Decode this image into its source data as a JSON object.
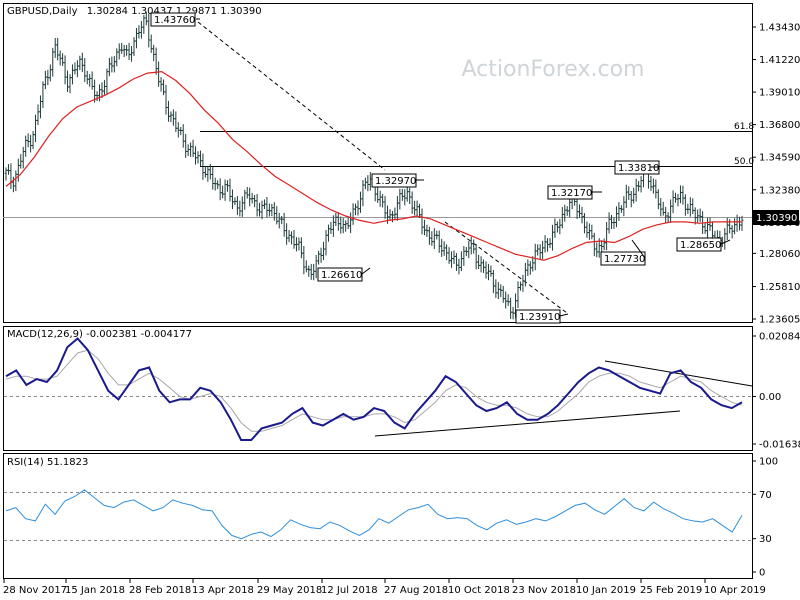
{
  "chart_data": [
    {
      "type": "candlestick",
      "title": "GBPUSD,Daily",
      "ohlc_label": "1.30284 1.30437 1.29871 1.30390",
      "watermark": "ActionForex.com",
      "y_ticks": [
        "1.43430",
        "1.41220",
        "1.39010",
        "1.36800",
        "1.34590",
        "1.32380",
        "1.30170",
        "1.28060",
        "1.25810",
        "1.23605"
      ],
      "current_price": "1.30390",
      "x_ticks": [
        "28 Nov 2017",
        "15 Jan 2018",
        "28 Feb 2018",
        "13 Apr 2018",
        "29 May 2018",
        "12 Jul 2018",
        "27 Aug 2018",
        "10 Oct 2018",
        "23 Nov 2018",
        "10 Jan 2019",
        "25 Feb 2019",
        "10 Apr 2019"
      ],
      "fib_levels": [
        {
          "label": "61.8",
          "price": 1.3645
        },
        {
          "label": "50.0",
          "price": 1.341
        }
      ],
      "price_labels": [
        "1.43760",
        "1.32970",
        "1.26610",
        "1.23910",
        "1.32170",
        "1.27730",
        "1.33810",
        "1.28650"
      ],
      "price_path": [
        1.335,
        1.329,
        1.338,
        1.352,
        1.358,
        1.37,
        1.392,
        1.405,
        1.42,
        1.412,
        1.398,
        1.401,
        1.412,
        1.405,
        1.392,
        1.388,
        1.395,
        1.405,
        1.415,
        1.422,
        1.412,
        1.425,
        1.434,
        1.437,
        1.42,
        1.4,
        1.385,
        1.375,
        1.366,
        1.358,
        1.352,
        1.347,
        1.342,
        1.336,
        1.329,
        1.324,
        1.326,
        1.318,
        1.312,
        1.316,
        1.32,
        1.315,
        1.309,
        1.312,
        1.31,
        1.301,
        1.295,
        1.291,
        1.285,
        1.275,
        1.266,
        1.272,
        1.285,
        1.296,
        1.301,
        1.303,
        1.297,
        1.307,
        1.317,
        1.327,
        1.33,
        1.322,
        1.311,
        1.304,
        1.312,
        1.318,
        1.322,
        1.313,
        1.304,
        1.296,
        1.291,
        1.288,
        1.284,
        1.277,
        1.272,
        1.279,
        1.285,
        1.281,
        1.273,
        1.268,
        1.262,
        1.255,
        1.249,
        1.241,
        1.252,
        1.263,
        1.274,
        1.279,
        1.283,
        1.289,
        1.294,
        1.301,
        1.312,
        1.317,
        1.311,
        1.302,
        1.291,
        1.284,
        1.286,
        1.298,
        1.306,
        1.311,
        1.318,
        1.322,
        1.326,
        1.338,
        1.33,
        1.318,
        1.305,
        1.311,
        1.317,
        1.32,
        1.313,
        1.307,
        1.305,
        1.299,
        1.294,
        1.29,
        1.292,
        1.297,
        1.301,
        1.304
      ],
      "ma_path": [
        1.326,
        1.334,
        1.346,
        1.36,
        1.372,
        1.38,
        1.384,
        1.388,
        1.393,
        1.399,
        1.403,
        1.404,
        1.398,
        1.389,
        1.378,
        1.369,
        1.358,
        1.35,
        1.341,
        1.333,
        1.327,
        1.321,
        1.315,
        1.31,
        1.306,
        1.303,
        1.301,
        1.303,
        1.304,
        1.306,
        1.304,
        1.3,
        1.296,
        1.292,
        1.288,
        1.284,
        1.28,
        1.278,
        1.276,
        1.279,
        1.284,
        1.288,
        1.289,
        1.288,
        1.292,
        1.297,
        1.3,
        1.302,
        1.302,
        1.301,
        1.302,
        1.302,
        1.302
      ],
      "panel_bottom_dashed_y": 1.2685
    },
    {
      "type": "line",
      "title": "MACD(12,26,9) -0.002381 -0.004177",
      "y_ticks": [
        "0.020848",
        "0.00",
        "-0.016389"
      ],
      "macd": [
        0.007,
        0.009,
        0.004,
        0.006,
        0.005,
        0.009,
        0.017,
        0.02,
        0.016,
        0.009,
        0.002,
        -0.001,
        0.004,
        0.009,
        0.01,
        0.002,
        -0.002,
        -0.001,
        -0.001,
        0.003,
        0.002,
        -0.002,
        -0.008,
        -0.015,
        -0.015,
        -0.011,
        -0.01,
        -0.009,
        -0.006,
        -0.004,
        -0.009,
        -0.01,
        -0.008,
        -0.006,
        -0.008,
        -0.007,
        -0.004,
        -0.005,
        -0.009,
        -0.011,
        -0.006,
        -0.002,
        0.002,
        0.007,
        0.005,
        0.001,
        -0.003,
        -0.005,
        -0.004,
        -0.002,
        -0.006,
        -0.008,
        -0.008,
        -0.006,
        -0.003,
        0.001,
        0.005,
        0.008,
        0.01,
        0.009,
        0.007,
        0.005,
        0.003,
        0.002,
        0.001,
        0.008,
        0.009,
        0.005,
        0.003,
        -0.001,
        -0.003,
        -0.004,
        -0.002
      ],
      "signal": [
        0.006,
        0.007,
        0.007,
        0.006,
        0.006,
        0.007,
        0.011,
        0.015,
        0.016,
        0.013,
        0.008,
        0.004,
        0.004,
        0.006,
        0.008,
        0.006,
        0.003,
        0.0,
        -0.001,
        0.0,
        0.001,
        0.0,
        -0.004,
        -0.009,
        -0.012,
        -0.012,
        -0.011,
        -0.01,
        -0.008,
        -0.006,
        -0.007,
        -0.008,
        -0.008,
        -0.007,
        -0.007,
        -0.007,
        -0.006,
        -0.006,
        -0.007,
        -0.009,
        -0.008,
        -0.005,
        -0.002,
        0.002,
        0.004,
        0.003,
        0.0,
        -0.002,
        -0.003,
        -0.003,
        -0.004,
        -0.006,
        -0.007,
        -0.007,
        -0.005,
        -0.002,
        0.001,
        0.005,
        0.007,
        0.008,
        0.008,
        0.007,
        0.005,
        0.004,
        0.003,
        0.005,
        0.007,
        0.006,
        0.005,
        0.002,
        0.0,
        -0.002,
        -0.003
      ]
    },
    {
      "type": "line",
      "title": "RSI(14) 51.1823",
      "y_ticks": [
        "100",
        "70",
        "30",
        "0"
      ],
      "ylim": [
        0,
        100
      ],
      "rsi": [
        55,
        58,
        48,
        46,
        61,
        52,
        64,
        68,
        74,
        67,
        60,
        58,
        63,
        65,
        60,
        55,
        58,
        65,
        62,
        60,
        56,
        55,
        42,
        33,
        30,
        34,
        36,
        32,
        38,
        47,
        43,
        40,
        39,
        45,
        42,
        37,
        33,
        38,
        48,
        44,
        50,
        56,
        58,
        61,
        52,
        48,
        49,
        48,
        42,
        38,
        44,
        47,
        43,
        45,
        48,
        46,
        50,
        55,
        60,
        62,
        56,
        52,
        59,
        66,
        58,
        55,
        63,
        57,
        53,
        48,
        46,
        45,
        48,
        42,
        36,
        51
      ]
    }
  ]
}
